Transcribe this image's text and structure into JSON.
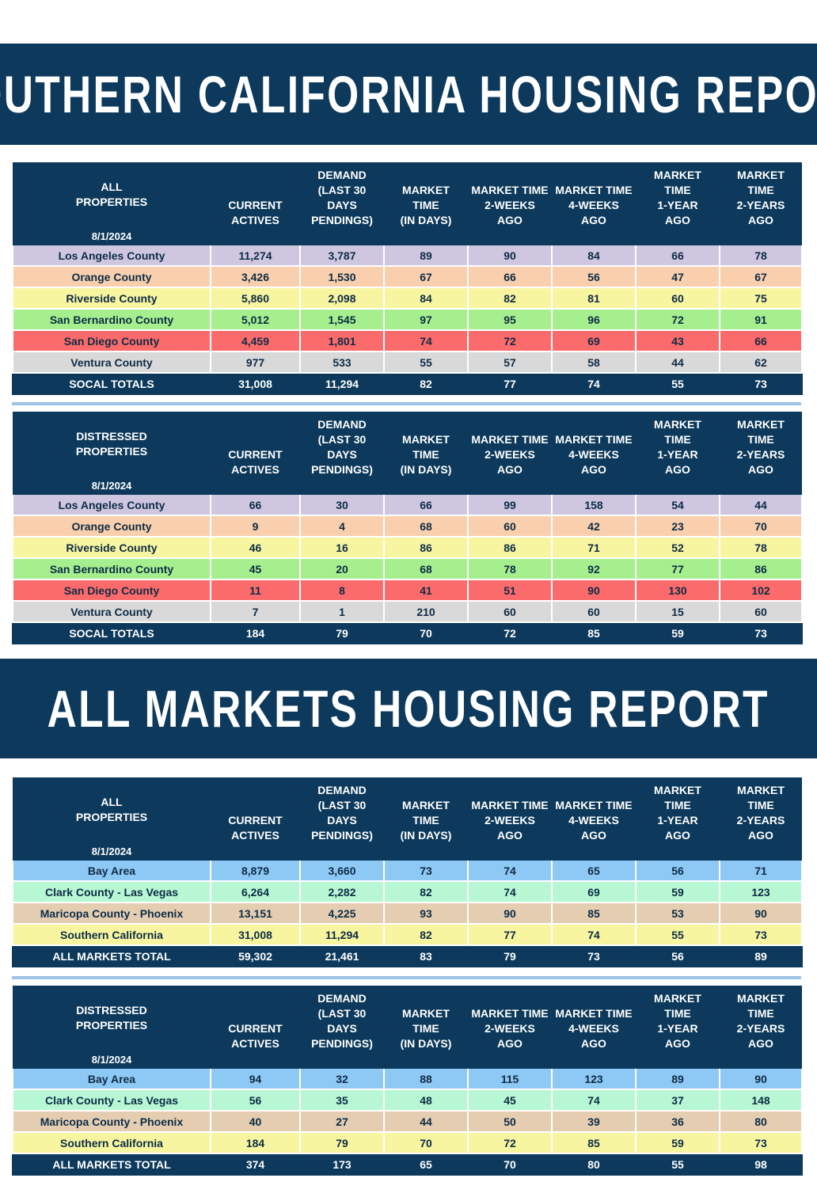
{
  "sections": [
    {
      "title": "SOUTHERN CALIFORNIA HOUSING REPORT",
      "tables": [
        {
          "header": {
            "label": "ALL\nPROPERTIES",
            "date": "8/1/2024",
            "columns": [
              "CURRENT\nACTIVES",
              "DEMAND\n(LAST 30\nDAYS\nPENDINGS)",
              "MARKET\nTIME\n(IN DAYS)",
              "MARKET TIME\n2-WEEKS\nAGO",
              "MARKET TIME\n4-WEEKS\nAGO",
              "MARKET\nTIME\n1-YEAR\nAGO",
              "MARKET\nTIME\n2-YEARS\nAGO"
            ]
          },
          "rows": [
            {
              "color": "#cfc6e0",
              "cells": [
                "Los Angeles County",
                "11,274",
                "3,787",
                "89",
                "90",
                "84",
                "66",
                "78"
              ]
            },
            {
              "color": "#f9cfad",
              "cells": [
                "Orange County",
                "3,426",
                "1,530",
                "67",
                "66",
                "56",
                "47",
                "67"
              ]
            },
            {
              "color": "#f7f5a0",
              "cells": [
                "Riverside County",
                "5,860",
                "2,098",
                "84",
                "82",
                "81",
                "60",
                "75"
              ]
            },
            {
              "color": "#a6ef8e",
              "cells": [
                "San Bernardino County",
                "5,012",
                "1,545",
                "97",
                "95",
                "96",
                "72",
                "91"
              ]
            },
            {
              "color": "#fb6b6b",
              "cells": [
                "San Diego County",
                "4,459",
                "1,801",
                "74",
                "72",
                "69",
                "43",
                "66"
              ]
            },
            {
              "color": "#d9d9d9",
              "cells": [
                "Ventura County",
                "977",
                "533",
                "55",
                "57",
                "58",
                "44",
                "62"
              ]
            }
          ],
          "total": [
            "SOCAL TOTALS",
            "31,008",
            "11,294",
            "82",
            "77",
            "74",
            "55",
            "73"
          ]
        },
        {
          "header": {
            "label": "DISTRESSED\nPROPERTIES",
            "date": "8/1/2024",
            "columns": [
              "CURRENT\nACTIVES",
              "DEMAND\n(LAST 30\nDAYS\nPENDINGS)",
              "MARKET\nTIME\n(IN DAYS)",
              "MARKET TIME\n2-WEEKS\nAGO",
              "MARKET TIME\n4-WEEKS\nAGO",
              "MARKET\nTIME\n1-YEAR\nAGO",
              "MARKET\nTIME\n2-YEARS\nAGO"
            ]
          },
          "rows": [
            {
              "color": "#cfc6e0",
              "cells": [
                "Los Angeles County",
                "66",
                "30",
                "66",
                "99",
                "158",
                "54",
                "44"
              ]
            },
            {
              "color": "#f9cfad",
              "cells": [
                "Orange County",
                "9",
                "4",
                "68",
                "60",
                "42",
                "23",
                "70"
              ]
            },
            {
              "color": "#f7f5a0",
              "cells": [
                "Riverside County",
                "46",
                "16",
                "86",
                "86",
                "71",
                "52",
                "78"
              ]
            },
            {
              "color": "#a6ef8e",
              "cells": [
                "San Bernardino County",
                "45",
                "20",
                "68",
                "78",
                "92",
                "77",
                "86"
              ]
            },
            {
              "color": "#fb6b6b",
              "cells": [
                "San Diego County",
                "11",
                "8",
                "41",
                "51",
                "90",
                "130",
                "102"
              ]
            },
            {
              "color": "#d9d9d9",
              "cells": [
                "Ventura County",
                "7",
                "1",
                "210",
                "60",
                "60",
                "15",
                "60"
              ]
            }
          ],
          "total": [
            "SOCAL TOTALS",
            "184",
            "79",
            "70",
            "72",
            "85",
            "59",
            "73"
          ]
        }
      ]
    },
    {
      "title": "ALL MARKETS HOUSING REPORT",
      "tables": [
        {
          "header": {
            "label": "ALL\nPROPERTIES",
            "date": "8/1/2024",
            "columns": [
              "CURRENT\nACTIVES",
              "DEMAND\n(LAST 30\nDAYS\nPENDINGS)",
              "MARKET\nTIME\n(IN DAYS)",
              "MARKET TIME\n2-WEEKS\nAGO",
              "MARKET TIME\n4-WEEKS\nAGO",
              "MARKET\nTIME\n1-YEAR\nAGO",
              "MARKET\nTIME\n2-YEARS\nAGO"
            ]
          },
          "rows": [
            {
              "color": "#8ec8f5",
              "cells": [
                "Bay Area",
                "8,879",
                "3,660",
                "73",
                "74",
                "65",
                "56",
                "71"
              ]
            },
            {
              "color": "#b7f7d4",
              "cells": [
                "Clark County - Las Vegas",
                "6,264",
                "2,282",
                "82",
                "74",
                "69",
                "59",
                "123"
              ]
            },
            {
              "color": "#e4cdb1",
              "cells": [
                "Maricopa County - Phoenix",
                "13,151",
                "4,225",
                "93",
                "90",
                "85",
                "53",
                "90"
              ]
            },
            {
              "color": "#f7f5a0",
              "cells": [
                "Southern California",
                "31,008",
                "11,294",
                "82",
                "77",
                "74",
                "55",
                "73"
              ]
            }
          ],
          "total": [
            "ALL MARKETS TOTAL",
            "59,302",
            "21,461",
            "83",
            "79",
            "73",
            "56",
            "89"
          ]
        },
        {
          "header": {
            "label": "DISTRESSED\nPROPERTIES",
            "date": "8/1/2024",
            "columns": [
              "CURRENT\nACTIVES",
              "DEMAND\n(LAST 30\nDAYS\nPENDINGS)",
              "MARKET\nTIME\n(IN DAYS)",
              "MARKET TIME\n2-WEEKS\nAGO",
              "MARKET TIME\n4-WEEKS\nAGO",
              "MARKET\nTIME\n1-YEAR\nAGO",
              "MARKET\nTIME\n2-YEARS\nAGO"
            ]
          },
          "rows": [
            {
              "color": "#8ec8f5",
              "cells": [
                "Bay Area",
                "94",
                "32",
                "88",
                "115",
                "123",
                "89",
                "90"
              ]
            },
            {
              "color": "#b7f7d4",
              "cells": [
                "Clark County - Las Vegas",
                "56",
                "35",
                "48",
                "45",
                "74",
                "37",
                "148"
              ]
            },
            {
              "color": "#e4cdb1",
              "cells": [
                "Maricopa County - Phoenix",
                "40",
                "27",
                "44",
                "50",
                "39",
                "36",
                "80"
              ]
            },
            {
              "color": "#f7f5a0",
              "cells": [
                "Southern California",
                "184",
                "79",
                "70",
                "72",
                "85",
                "59",
                "73"
              ]
            }
          ],
          "total": [
            "ALL MARKETS TOTAL",
            "374",
            "173",
            "65",
            "70",
            "80",
            "55",
            "98"
          ]
        }
      ]
    }
  ]
}
